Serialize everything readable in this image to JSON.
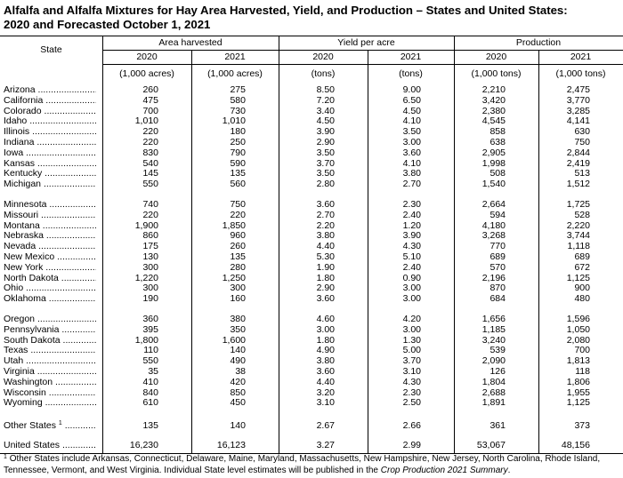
{
  "title": [
    "Alfalfa and Alfalfa Mixtures for Hay Area Harvested, Yield, and Production – States and United States:",
    "2020 and Forecasted October 1, 2021"
  ],
  "table": {
    "header": {
      "state": "State",
      "groups": [
        "Area harvested",
        "Yield per acre",
        "Production"
      ],
      "years": [
        "2020",
        "2021",
        "2020",
        "2021",
        "2020",
        "2021"
      ],
      "units": [
        "(1,000 acres)",
        "(1,000 acres)",
        "(tons)",
        "(tons)",
        "(1,000 tons)",
        "(1,000 tons)"
      ]
    },
    "sections": [
      [
        {
          "state": "Arizona",
          "values": [
            "260",
            "275",
            "8.50",
            "9.00",
            "2,210",
            "2,475"
          ]
        },
        {
          "state": "California",
          "values": [
            "475",
            "580",
            "7.20",
            "6.50",
            "3,420",
            "3,770"
          ]
        },
        {
          "state": "Colorado",
          "values": [
            "700",
            "730",
            "3.40",
            "4.50",
            "2,380",
            "3,285"
          ]
        },
        {
          "state": "Idaho",
          "values": [
            "1,010",
            "1,010",
            "4.50",
            "4.10",
            "4,545",
            "4,141"
          ]
        },
        {
          "state": "Illinois",
          "values": [
            "220",
            "180",
            "3.90",
            "3.50",
            "858",
            "630"
          ]
        },
        {
          "state": "Indiana",
          "values": [
            "220",
            "250",
            "2.90",
            "3.00",
            "638",
            "750"
          ]
        },
        {
          "state": "Iowa",
          "values": [
            "830",
            "790",
            "3.50",
            "3.60",
            "2,905",
            "2,844"
          ]
        },
        {
          "state": "Kansas",
          "values": [
            "540",
            "590",
            "3.70",
            "4.10",
            "1,998",
            "2,419"
          ]
        },
        {
          "state": "Kentucky",
          "values": [
            "145",
            "135",
            "3.50",
            "3.80",
            "508",
            "513"
          ]
        },
        {
          "state": "Michigan",
          "values": [
            "550",
            "560",
            "2.80",
            "2.70",
            "1,540",
            "1,512"
          ]
        }
      ],
      [
        {
          "state": "Minnesota",
          "values": [
            "740",
            "750",
            "3.60",
            "2.30",
            "2,664",
            "1,725"
          ]
        },
        {
          "state": "Missouri",
          "values": [
            "220",
            "220",
            "2.70",
            "2.40",
            "594",
            "528"
          ]
        },
        {
          "state": "Montana",
          "values": [
            "1,900",
            "1,850",
            "2.20",
            "1.20",
            "4,180",
            "2,220"
          ]
        },
        {
          "state": "Nebraska",
          "values": [
            "860",
            "960",
            "3.80",
            "3.90",
            "3,268",
            "3,744"
          ]
        },
        {
          "state": "Nevada",
          "values": [
            "175",
            "260",
            "4.40",
            "4.30",
            "770",
            "1,118"
          ]
        },
        {
          "state": "New Mexico",
          "values": [
            "130",
            "135",
            "5.30",
            "5.10",
            "689",
            "689"
          ]
        },
        {
          "state": "New York",
          "values": [
            "300",
            "280",
            "1.90",
            "2.40",
            "570",
            "672"
          ]
        },
        {
          "state": "North Dakota",
          "values": [
            "1,220",
            "1,250",
            "1.80",
            "0.90",
            "2,196",
            "1,125"
          ]
        },
        {
          "state": "Ohio",
          "values": [
            "300",
            "300",
            "2.90",
            "3.00",
            "870",
            "900"
          ]
        },
        {
          "state": "Oklahoma",
          "values": [
            "190",
            "160",
            "3.60",
            "3.00",
            "684",
            "480"
          ]
        }
      ],
      [
        {
          "state": "Oregon",
          "values": [
            "360",
            "380",
            "4.60",
            "4.20",
            "1,656",
            "1,596"
          ]
        },
        {
          "state": "Pennsylvania",
          "values": [
            "395",
            "350",
            "3.00",
            "3.00",
            "1,185",
            "1,050"
          ]
        },
        {
          "state": "South Dakota",
          "values": [
            "1,800",
            "1,600",
            "1.80",
            "1.30",
            "3,240",
            "2,080"
          ]
        },
        {
          "state": "Texas",
          "values": [
            "110",
            "140",
            "4.90",
            "5.00",
            "539",
            "700"
          ]
        },
        {
          "state": "Utah",
          "values": [
            "550",
            "490",
            "3.80",
            "3.70",
            "2,090",
            "1,813"
          ]
        },
        {
          "state": "Virginia",
          "values": [
            "35",
            "38",
            "3.60",
            "3.10",
            "126",
            "118"
          ]
        },
        {
          "state": "Washington",
          "values": [
            "410",
            "420",
            "4.40",
            "4.30",
            "1,804",
            "1,806"
          ]
        },
        {
          "state": "Wisconsin",
          "values": [
            "840",
            "850",
            "3.20",
            "2.30",
            "2,688",
            "1,955"
          ]
        },
        {
          "state": "Wyoming",
          "values": [
            "610",
            "450",
            "3.10",
            "2.50",
            "1,891",
            "1,125"
          ]
        }
      ],
      [
        {
          "state": "Other States",
          "marker": "1",
          "values": [
            "135",
            "140",
            "2.67",
            "2.66",
            "361",
            "373"
          ]
        }
      ],
      [
        {
          "state": "United States",
          "values": [
            "16,230",
            "16,123",
            "3.27",
            "2.99",
            "53,067",
            "48,156"
          ]
        }
      ]
    ]
  },
  "footnote": {
    "marker": "1",
    "text": "Other States include Arkansas, Connecticut, Delaware, Maine, Maryland, Massachusetts, New Hampshire, New Jersey, North Carolina, Rhode Island, Tennessee, Vermont, and West Virginia. Individual State level estimates will be published in the ",
    "italic": "Crop Production 2021 Summary",
    "end": "."
  }
}
